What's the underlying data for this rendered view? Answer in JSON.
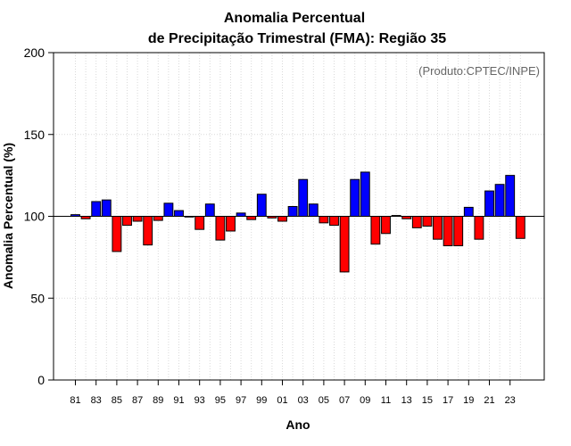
{
  "chart_data": {
    "type": "bar",
    "title_line1": "Anomalia Percentual",
    "title_line2": "de Precipitação Trimestral (FMA): Região 35",
    "xlabel": "Ano",
    "ylabel": "Anomalia Percentual (%)",
    "source_label": "(Produto:CPTEC/INPE)",
    "ylim": [
      0,
      200
    ],
    "yticks": [
      0,
      50,
      100,
      150,
      200
    ],
    "baseline": 100,
    "grid": true,
    "colors": {
      "above": "#0000ff",
      "below": "#ff0000"
    },
    "categories": [
      "81",
      "82",
      "83",
      "84",
      "85",
      "86",
      "87",
      "88",
      "89",
      "90",
      "91",
      "92",
      "93",
      "94",
      "95",
      "96",
      "97",
      "98",
      "99",
      "00",
      "01",
      "02",
      "03",
      "04",
      "05",
      "06",
      "07",
      "08",
      "09",
      "10",
      "11",
      "12",
      "13",
      "14",
      "15",
      "16",
      "17",
      "18",
      "19",
      "20",
      "21",
      "22",
      "23",
      "24"
    ],
    "xtick_labels": [
      "81",
      "83",
      "85",
      "87",
      "89",
      "91",
      "93",
      "95",
      "97",
      "99",
      "01",
      "03",
      "05",
      "07",
      "09",
      "11",
      "13",
      "15",
      "17",
      "19",
      "21",
      "23"
    ],
    "values": [
      101,
      98.5,
      109,
      110,
      78.5,
      94.5,
      97,
      82.5,
      97.5,
      108,
      103.5,
      100,
      92,
      107.5,
      85.5,
      91,
      102,
      98,
      113.5,
      99,
      97,
      106,
      122.5,
      107.5,
      96,
      94.5,
      66,
      122.5,
      127,
      83,
      89.5,
      100.5,
      98.5,
      93,
      94,
      86,
      82,
      82,
      105.5,
      86,
      115.5,
      119.5,
      125,
      86.5
    ]
  }
}
